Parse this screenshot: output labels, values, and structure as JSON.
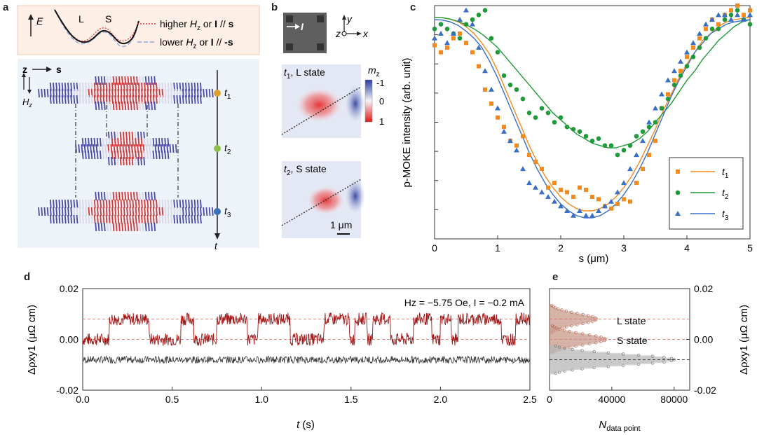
{
  "panel_a": {
    "label": "a",
    "energy": {
      "E_label": "E",
      "L_label": "L",
      "S_label": "S",
      "legend": [
        {
          "pre": "higher ",
          "H": "H",
          "sub": "z",
          "mid": " or ",
          "bold": "I",
          "post": " // ",
          "vec": "s",
          "color": "#e0404a"
        },
        {
          "pre": "lower ",
          "H": "H",
          "sub": "z",
          "mid": " or ",
          "bold": "I",
          "post": " // ",
          "vec": "-s",
          "color": "#8aa6d8"
        }
      ]
    },
    "axes": {
      "z": "z",
      "s": "s",
      "H": "H",
      "Hsub": "z"
    },
    "times": [
      {
        "t": "t",
        "sub": "1",
        "color": "#e0a030"
      },
      {
        "t": "t",
        "sub": "2",
        "color": "#8cc04a"
      },
      {
        "t": "t",
        "sub": "3",
        "color": "#3a6fb8"
      }
    ],
    "t_axis": "t",
    "colors": {
      "spin_blue": "#4a4aa8",
      "spin_red": "#d23a3a",
      "background": "#eef3fa",
      "energy_bg": "#fdeee6"
    }
  },
  "panel_b": {
    "label": "b",
    "current": "I",
    "coord": {
      "y": "y",
      "z": "z",
      "x": "x"
    },
    "img1": {
      "t": "t",
      "sub": "1",
      "text": ", L state"
    },
    "img2": {
      "t": "t",
      "sub": "2",
      "text": ", S state"
    },
    "colorbar": {
      "title": "m",
      "sub": "z",
      "ticks": [
        "-1",
        "0",
        "1"
      ]
    },
    "scalebar": "1 μm"
  },
  "panel_c": {
    "label": "c",
    "chart_data": {
      "type": "scatter",
      "xlabel": "s (μm)",
      "ylabel": "p-MOKE intensity (arb. unit)",
      "xlim": [
        0,
        5
      ],
      "ylim": [
        0,
        1
      ],
      "xticks": [
        "0",
        "1",
        "2",
        "3",
        "4",
        "5"
      ],
      "series": [
        {
          "name": "t1",
          "sub": "1",
          "color": "#f28a1f",
          "marker": "square",
          "x": [
            0.0,
            0.1,
            0.2,
            0.3,
            0.4,
            0.5,
            0.6,
            0.7,
            0.8,
            0.9,
            1.0,
            1.1,
            1.2,
            1.3,
            1.4,
            1.5,
            1.6,
            1.7,
            1.8,
            1.9,
            2.0,
            2.1,
            2.2,
            2.3,
            2.4,
            2.5,
            2.6,
            2.7,
            2.8,
            2.9,
            3.0,
            3.1,
            3.2,
            3.3,
            3.4,
            3.5,
            3.6,
            3.7,
            3.8,
            3.9,
            4.0,
            4.1,
            4.2,
            4.3,
            4.4,
            4.5,
            4.6,
            4.7,
            4.8,
            4.9,
            5.0
          ],
          "y": [
            0.83,
            0.8,
            0.82,
            0.86,
            0.88,
            0.84,
            0.8,
            0.74,
            0.64,
            0.58,
            0.52,
            0.48,
            0.42,
            0.4,
            0.44,
            0.36,
            0.33,
            0.3,
            0.22,
            0.24,
            0.21,
            0.2,
            0.18,
            0.22,
            0.21,
            0.18,
            0.17,
            0.14,
            0.13,
            0.15,
            0.17,
            0.16,
            0.24,
            0.3,
            0.36,
            0.42,
            0.56,
            0.62,
            0.68,
            0.72,
            0.78,
            0.82,
            0.86,
            0.9,
            0.94,
            0.92,
            0.96,
            0.98,
            1.0,
            0.96,
            0.98
          ],
          "fit": [
            0.95,
            0.948,
            0.942,
            0.93,
            0.91,
            0.88,
            0.84,
            0.79,
            0.72,
            0.64,
            0.56,
            0.48,
            0.4,
            0.33,
            0.27,
            0.22,
            0.18,
            0.15,
            0.13,
            0.12,
            0.12,
            0.13,
            0.15,
            0.18,
            0.22,
            0.27,
            0.33,
            0.4,
            0.47,
            0.55,
            0.62,
            0.69,
            0.75,
            0.8,
            0.85,
            0.88,
            0.91,
            0.93,
            0.94,
            0.945,
            0.95
          ]
        },
        {
          "name": "t2",
          "sub": "2",
          "color": "#1f9a3a",
          "marker": "circle",
          "x": [
            0.0,
            0.1,
            0.2,
            0.3,
            0.4,
            0.5,
            0.6,
            0.7,
            0.8,
            0.9,
            1.0,
            1.1,
            1.2,
            1.3,
            1.4,
            1.5,
            1.6,
            1.7,
            1.8,
            1.9,
            2.0,
            2.1,
            2.2,
            2.3,
            2.4,
            2.5,
            2.6,
            2.7,
            2.8,
            2.9,
            3.0,
            3.1,
            3.2,
            3.3,
            3.4,
            3.5,
            3.6,
            3.7,
            3.8,
            3.9,
            4.0,
            4.1,
            4.2,
            4.3,
            4.4,
            4.5,
            4.6,
            4.7,
            4.8,
            4.9,
            5.0
          ],
          "y": [
            0.9,
            0.92,
            0.9,
            0.88,
            0.86,
            0.92,
            0.94,
            0.96,
            0.98,
            0.86,
            0.8,
            0.7,
            0.66,
            0.64,
            0.6,
            0.54,
            0.52,
            0.56,
            0.54,
            0.5,
            0.52,
            0.48,
            0.47,
            0.46,
            0.44,
            0.42,
            0.43,
            0.4,
            0.4,
            0.36,
            0.38,
            0.4,
            0.44,
            0.46,
            0.48,
            0.5,
            0.56,
            0.6,
            0.66,
            0.7,
            0.74,
            0.78,
            0.82,
            0.86,
            0.9,
            0.9,
            0.94,
            0.96,
            0.98,
            0.94,
            0.92
          ],
          "fit": [
            0.95,
            0.948,
            0.942,
            0.932,
            0.918,
            0.9,
            0.878,
            0.85,
            0.82,
            0.78,
            0.74,
            0.7,
            0.66,
            0.62,
            0.58,
            0.54,
            0.51,
            0.48,
            0.45,
            0.43,
            0.41,
            0.4,
            0.39,
            0.39,
            0.4,
            0.41,
            0.43,
            0.46,
            0.5,
            0.54,
            0.58,
            0.63,
            0.68,
            0.72,
            0.77,
            0.81,
            0.85,
            0.88,
            0.91,
            0.93,
            0.94
          ]
        },
        {
          "name": "t3",
          "sub": "3",
          "color": "#3a6fc8",
          "marker": "triangle",
          "x": [
            0.0,
            0.1,
            0.2,
            0.3,
            0.4,
            0.5,
            0.6,
            0.7,
            0.8,
            0.9,
            1.0,
            1.1,
            1.2,
            1.3,
            1.4,
            1.5,
            1.6,
            1.7,
            1.8,
            1.9,
            2.0,
            2.1,
            2.2,
            2.3,
            2.4,
            2.5,
            2.6,
            2.7,
            2.8,
            2.9,
            3.0,
            3.1,
            3.2,
            3.3,
            3.4,
            3.5,
            3.6,
            3.7,
            3.8,
            3.9,
            4.0,
            4.1,
            4.2,
            4.3,
            4.4,
            4.5,
            4.6,
            4.7,
            4.8,
            4.9,
            5.0
          ],
          "y": [
            0.86,
            0.88,
            0.84,
            0.88,
            0.94,
            0.98,
            0.92,
            0.82,
            0.72,
            0.64,
            0.56,
            0.46,
            0.42,
            0.38,
            0.3,
            0.24,
            0.22,
            0.2,
            0.18,
            0.16,
            0.14,
            0.12,
            0.1,
            0.12,
            0.1,
            0.1,
            0.12,
            0.14,
            0.16,
            0.2,
            0.24,
            0.3,
            0.36,
            0.42,
            0.5,
            0.56,
            0.62,
            0.68,
            0.72,
            0.76,
            0.8,
            0.84,
            0.88,
            0.92,
            0.94,
            0.96,
            0.96,
            0.94,
            0.96,
            0.94,
            0.96
          ],
          "fit": [
            0.94,
            0.938,
            0.93,
            0.915,
            0.89,
            0.86,
            0.82,
            0.76,
            0.69,
            0.61,
            0.53,
            0.45,
            0.37,
            0.3,
            0.24,
            0.19,
            0.15,
            0.12,
            0.1,
            0.09,
            0.09,
            0.1,
            0.12,
            0.15,
            0.19,
            0.24,
            0.3,
            0.37,
            0.45,
            0.53,
            0.61,
            0.68,
            0.74,
            0.8,
            0.84,
            0.88,
            0.9,
            0.92,
            0.93,
            0.935,
            0.94
          ]
        }
      ]
    }
  },
  "panel_d": {
    "label": "d",
    "chart_data": {
      "type": "line",
      "xlabel_t": "t",
      "xlabel_unit": " (s)",
      "ylabel": "Δρxy1 (μΩ cm)",
      "xlim": [
        0,
        2.5
      ],
      "ylim": [
        -0.02,
        0.02
      ],
      "xticks": [
        "0.0",
        "0.5",
        "1.0",
        "1.5",
        "2.0",
        "2.5"
      ],
      "yticks": [
        "0.02",
        "0.00",
        "-0.02"
      ],
      "annotation": "Hz = −5.75 Oe, I = −0.2 mA",
      "ref_levels": [
        0.008,
        0.0
      ],
      "telegraph_high_intervals": [
        [
          0.15,
          0.37
        ],
        [
          0.55,
          0.62
        ],
        [
          0.75,
          0.92
        ],
        [
          0.98,
          1.16
        ],
        [
          1.35,
          1.49
        ],
        [
          1.52,
          1.59
        ],
        [
          1.62,
          1.72
        ],
        [
          1.85,
          1.95
        ],
        [
          2.0,
          2.06
        ],
        [
          2.1,
          2.34
        ],
        [
          2.42,
          2.5
        ]
      ],
      "series": [
        {
          "name": "signal",
          "color": "#a01818",
          "high": 0.008,
          "low": 0.0
        },
        {
          "name": "reference",
          "color": "#333333",
          "level": -0.008
        }
      ]
    }
  },
  "panel_e": {
    "label": "e",
    "chart_data": {
      "type": "histogram",
      "xlabel": "N",
      "xlabel_sub": "data point",
      "ylabel": "Δρxy1 (μΩ cm)",
      "xticks": [
        "0",
        "40000",
        "80000"
      ],
      "xlim": [
        0,
        90000
      ],
      "ylim": [
        -0.02,
        0.02
      ],
      "yticks": [
        "0.02",
        "0.00",
        "-0.02"
      ],
      "states": [
        {
          "name": "L state",
          "level": 0.008,
          "peak": 30000,
          "color": "#c89a8a"
        },
        {
          "name": "S state",
          "level": 0.0,
          "peak": 36000,
          "color": "#c89a8a"
        },
        {
          "name": "reference",
          "level": -0.008,
          "peak": 80000,
          "color": "#b8b8b8"
        }
      ]
    }
  }
}
